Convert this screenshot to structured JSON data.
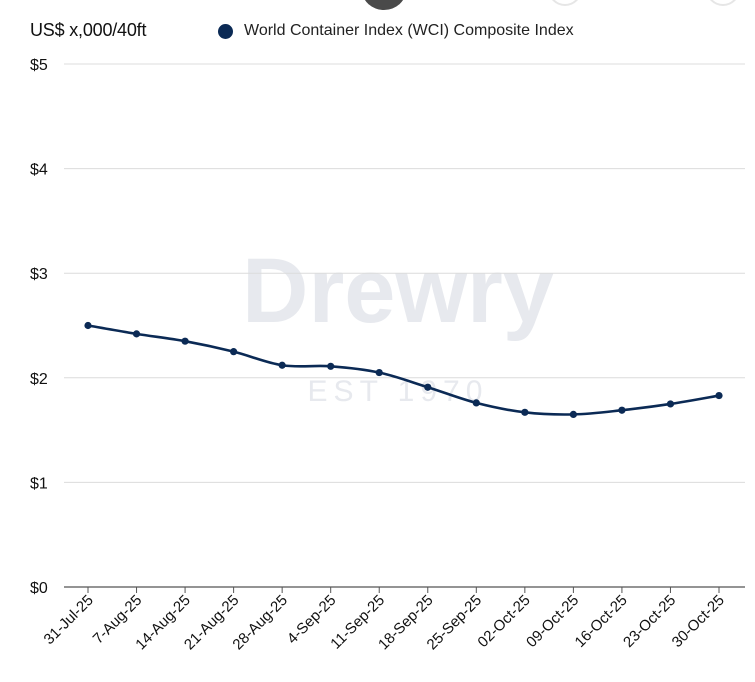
{
  "header": {
    "unit_label": "US$ x,000/40ft",
    "legend_label": "World Container Index (WCI) Composite Index"
  },
  "watermark": {
    "brand": "Drewry",
    "est": "EST 1970"
  },
  "colors": {
    "series": "#0b2a55",
    "grid": "#dcdcdc",
    "axis": "#555555",
    "watermark": "#e7e9ee"
  },
  "chart_data": {
    "type": "line",
    "ylabel": "US$ x,000/40ft",
    "ylim": [
      0,
      5
    ],
    "y_ticks": [
      "$0",
      "$1",
      "$2",
      "$3",
      "$4",
      "$5"
    ],
    "y_tick_values": [
      0,
      1,
      2,
      3,
      4,
      5
    ],
    "grid": true,
    "legend_position": "top",
    "categories": [
      "31-Jul-25",
      "7-Aug-25",
      "14-Aug-25",
      "21-Aug-25",
      "28-Aug-25",
      "4-Sep-25",
      "11-Sep-25",
      "18-Sep-25",
      "25-Sep-25",
      "02-Oct-25",
      "09-Oct-25",
      "16-Oct-25",
      "23-Oct-25",
      "30-Oct-25"
    ],
    "series": [
      {
        "name": "World Container Index (WCI) Composite Index",
        "values": [
          2.5,
          2.42,
          2.35,
          2.25,
          2.12,
          2.11,
          2.05,
          1.91,
          1.76,
          1.67,
          1.65,
          1.69,
          1.75,
          1.83
        ]
      }
    ]
  }
}
